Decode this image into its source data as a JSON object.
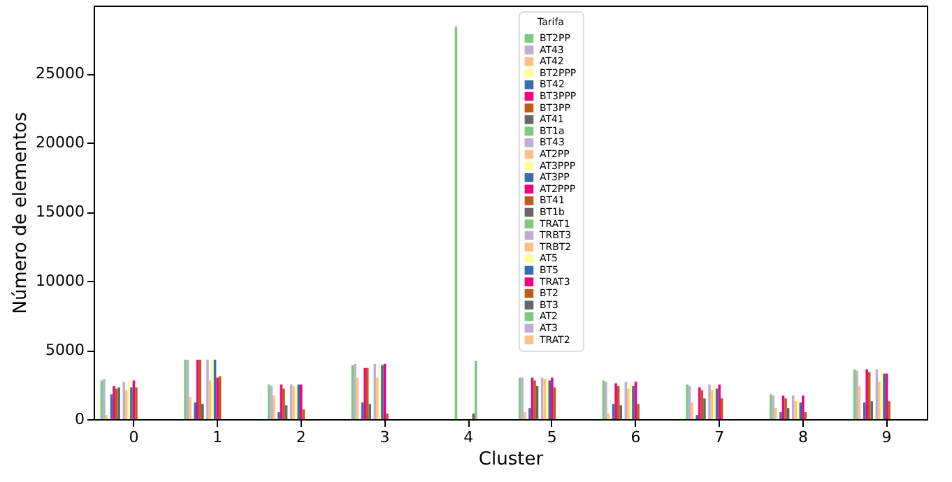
{
  "chart_data": {
    "type": "bar",
    "xlabel": "Cluster",
    "ylabel": "Número de elementos",
    "legend_title": "Tarifa",
    "legend": "top",
    "categories": [
      "0",
      "1",
      "2",
      "3",
      "4",
      "5",
      "6",
      "7",
      "8",
      "9"
    ],
    "ylim": [
      0,
      29900
    ],
    "yticks": [
      0,
      5000,
      10000,
      15000,
      20000,
      25000
    ],
    "grid": false,
    "series": [
      {
        "name": "BT2PP",
        "color": "#7fc97f",
        "values": [
          2800,
          4300,
          2500,
          3900,
          0,
          3000,
          2800,
          2500,
          1800,
          3600
        ]
      },
      {
        "name": "AT43",
        "color": "#beaed4",
        "values": [
          2900,
          4300,
          2400,
          4000,
          0,
          3000,
          2700,
          2400,
          1700,
          3500
        ]
      },
      {
        "name": "AT42",
        "color": "#fdc086",
        "values": [
          300,
          1600,
          1700,
          3000,
          0,
          500,
          400,
          1200,
          800,
          2400
        ]
      },
      {
        "name": "BT2PPP",
        "color": "#ffff99",
        "values": [
          100,
          100,
          100,
          100,
          0,
          100,
          100,
          100,
          100,
          100
        ]
      },
      {
        "name": "BT42",
        "color": "#386cb0",
        "values": [
          1800,
          1200,
          500,
          1200,
          0,
          800,
          1100,
          300,
          500,
          1200
        ]
      },
      {
        "name": "BT3PPP",
        "color": "#f0027f",
        "values": [
          2400,
          4300,
          2500,
          3700,
          0,
          3000,
          2600,
          2300,
          1700,
          3600
        ]
      },
      {
        "name": "BT3PP",
        "color": "#bf5b17",
        "values": [
          2200,
          4300,
          2200,
          3700,
          0,
          2800,
          2400,
          2100,
          1500,
          3400
        ]
      },
      {
        "name": "AT41",
        "color": "#666666",
        "values": [
          2300,
          1100,
          1000,
          1100,
          0,
          2400,
          1000,
          1500,
          800,
          1300
        ]
      },
      {
        "name": "BT1a",
        "color": "#7fc97f",
        "values": [
          0,
          0,
          0,
          0,
          28400,
          0,
          0,
          0,
          0,
          0
        ]
      },
      {
        "name": "BT43",
        "color": "#beaed4",
        "values": [
          2700,
          4300,
          2500,
          4000,
          0,
          3000,
          2700,
          2500,
          1700,
          3600
        ]
      },
      {
        "name": "AT2PP",
        "color": "#fdc086",
        "values": [
          2100,
          2800,
          2400,
          3000,
          0,
          2900,
          2200,
          2100,
          1300,
          2700
        ]
      },
      {
        "name": "AT3PPP",
        "color": "#ffff99",
        "values": [
          2800,
          4300,
          2400,
          4000,
          0,
          3000,
          2600,
          2400,
          1500,
          3500
        ]
      },
      {
        "name": "AT3PP",
        "color": "#386cb0",
        "values": [
          2300,
          4300,
          2500,
          3900,
          0,
          2800,
          2400,
          2200,
          1200,
          3300
        ]
      },
      {
        "name": "AT2PPP",
        "color": "#f0027f",
        "values": [
          2800,
          3000,
          2500,
          4000,
          0,
          3000,
          2700,
          2500,
          1700,
          3300
        ]
      },
      {
        "name": "BT41",
        "color": "#bf5b17",
        "values": [
          2300,
          3100,
          700,
          400,
          0,
          2300,
          1100,
          1500,
          500,
          1300
        ]
      },
      {
        "name": "BT1b",
        "color": "#666666",
        "values": [
          0,
          0,
          0,
          0,
          400,
          0,
          0,
          0,
          0,
          0
        ]
      },
      {
        "name": "TRAT1",
        "color": "#7fc97f",
        "values": [
          0,
          0,
          0,
          0,
          4200,
          0,
          0,
          0,
          0,
          0
        ]
      },
      {
        "name": "TRBT3",
        "color": "#beaed4",
        "values": [
          0,
          0,
          0,
          0,
          0,
          0,
          0,
          0,
          0,
          0
        ]
      },
      {
        "name": "TRBT2",
        "color": "#fdc086",
        "values": [
          0,
          0,
          0,
          0,
          0,
          0,
          0,
          0,
          0,
          0
        ]
      },
      {
        "name": "AT5",
        "color": "#ffff99",
        "values": [
          0,
          0,
          0,
          0,
          0,
          0,
          0,
          0,
          0,
          0
        ]
      },
      {
        "name": "BT5",
        "color": "#386cb0",
        "values": [
          0,
          0,
          0,
          0,
          0,
          0,
          0,
          0,
          0,
          0
        ]
      },
      {
        "name": "TRAT3",
        "color": "#f0027f",
        "values": [
          0,
          0,
          0,
          0,
          0,
          0,
          0,
          0,
          0,
          0
        ]
      },
      {
        "name": "BT2",
        "color": "#bf5b17",
        "values": [
          0,
          0,
          0,
          0,
          0,
          0,
          0,
          0,
          0,
          0
        ]
      },
      {
        "name": "BT3",
        "color": "#666666",
        "values": [
          0,
          0,
          0,
          0,
          0,
          0,
          0,
          0,
          0,
          0
        ]
      },
      {
        "name": "AT2",
        "color": "#7fc97f",
        "values": [
          0,
          0,
          0,
          0,
          0,
          0,
          0,
          0,
          0,
          0
        ]
      },
      {
        "name": "AT3",
        "color": "#beaed4",
        "values": [
          0,
          0,
          0,
          0,
          0,
          0,
          0,
          0,
          0,
          0
        ]
      },
      {
        "name": "TRAT2",
        "color": "#fdc086",
        "values": [
          0,
          0,
          0,
          0,
          0,
          0,
          0,
          0,
          0,
          0
        ]
      }
    ]
  }
}
